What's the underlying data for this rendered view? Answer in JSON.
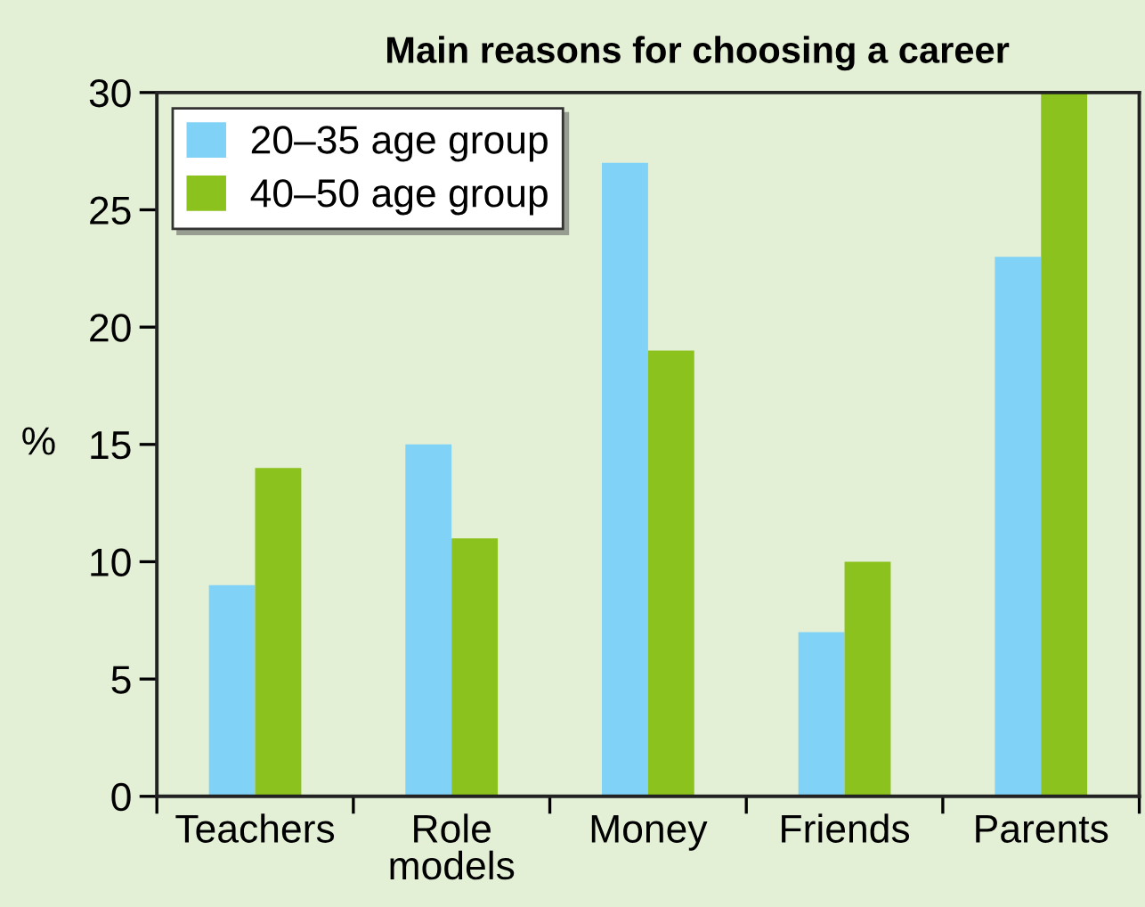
{
  "chart_data": {
    "type": "bar",
    "title": "Main reasons for choosing a career",
    "ylabel": "%",
    "categories": [
      "Teachers",
      "Role\nmodels",
      "Money",
      "Friends",
      "Parents"
    ],
    "series": [
      {
        "name": "20–35 age group",
        "color": "#80d2f6",
        "values": [
          9,
          15,
          27,
          7,
          23
        ]
      },
      {
        "name": "40–50 age group",
        "color": "#8cc21e",
        "values": [
          14,
          11,
          19,
          10,
          30
        ]
      }
    ],
    "ylim": [
      0,
      30
    ],
    "yticks": [
      0,
      5,
      10,
      15,
      20,
      25,
      30
    ],
    "grid": false,
    "legend": "top left"
  }
}
